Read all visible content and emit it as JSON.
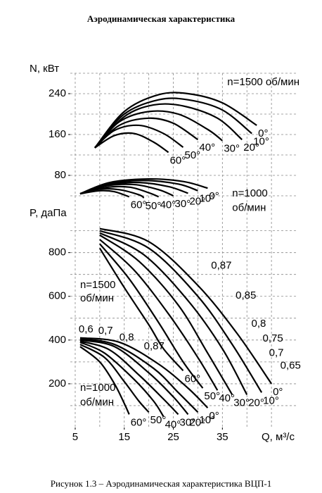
{
  "title": "Аэродинамическая характеристика",
  "caption": "Рисунок 1.3 – Аэродинамическая характеристика ВЦП-1",
  "chart_data": [
    {
      "type": "line",
      "ylabel": "N, кВт",
      "xlim": [
        4,
        50
      ],
      "ylim": [
        0,
        280
      ],
      "yticks": [
        80,
        160,
        240
      ],
      "x_grid": [
        5,
        10,
        15,
        20,
        25,
        30,
        35,
        40,
        45
      ],
      "y_grid": [
        40,
        80,
        120,
        160,
        200,
        240,
        280
      ],
      "color": "#000000",
      "annotations": [
        {
          "text": "n=1500 об/мин",
          "x": 36,
          "y": 262
        },
        {
          "text": "n=1000",
          "x": 37,
          "y": 44
        },
        {
          "text": "об/мин",
          "x": 37,
          "y": 16
        }
      ],
      "series": [
        {
          "name": "0°",
          "x": [
            9,
            15,
            22,
            28,
            35,
            42
          ],
          "values": [
            134,
            205,
            238,
            240,
            222,
            178
          ]
        },
        {
          "name": "10°",
          "x": [
            9,
            15,
            22,
            28,
            35,
            41
          ],
          "values": [
            134,
            200,
            228,
            228,
            208,
            162
          ]
        },
        {
          "name": "20°",
          "x": [
            9,
            15,
            21,
            27,
            34,
            39
          ],
          "values": [
            134,
            195,
            218,
            216,
            192,
            150
          ]
        },
        {
          "name": "30°",
          "x": [
            9,
            14,
            20,
            26,
            32,
            35
          ],
          "values": [
            134,
            185,
            205,
            200,
            170,
            148
          ]
        },
        {
          "name": "40°",
          "x": [
            9,
            14,
            20,
            25,
            30
          ],
          "values": [
            134,
            178,
            192,
            182,
            150
          ]
        },
        {
          "name": "50°",
          "x": [
            9,
            13,
            18,
            23,
            27
          ],
          "values": [
            134,
            168,
            178,
            162,
            135
          ]
        },
        {
          "name": "60°",
          "x": [
            9,
            13,
            17,
            21,
            24
          ],
          "values": [
            134,
            158,
            162,
            145,
            125
          ]
        },
        {
          "name": "0°",
          "x": [
            6,
            12,
            20,
            27,
            32
          ],
          "values": [
            44,
            66,
            73,
            68,
            55
          ]
        },
        {
          "name": "10°",
          "x": [
            6,
            12,
            19,
            26,
            30
          ],
          "values": [
            44,
            64,
            70,
            63,
            50
          ]
        },
        {
          "name": "20°",
          "x": [
            6,
            12,
            18,
            24,
            28
          ],
          "values": [
            44,
            62,
            66,
            58,
            45
          ]
        },
        {
          "name": "30°",
          "x": [
            6,
            11,
            17,
            22,
            25
          ],
          "values": [
            44,
            59,
            62,
            52,
            40
          ]
        },
        {
          "name": "40°",
          "x": [
            6,
            11,
            16,
            20,
            22
          ],
          "values": [
            44,
            56,
            57,
            46,
            38
          ]
        },
        {
          "name": "50°",
          "x": [
            6,
            10,
            14,
            18,
            19
          ],
          "values": [
            44,
            53,
            52,
            42,
            36
          ]
        },
        {
          "name": "60°",
          "x": [
            6,
            10,
            13,
            16
          ],
          "values": [
            44,
            50,
            48,
            38
          ]
        }
      ]
    },
    {
      "type": "line",
      "ylabel": "P, даПа",
      "xlabel": "Q, м³/с",
      "xlim": [
        4,
        50
      ],
      "ylim": [
        0,
        960
      ],
      "xticks": [
        5,
        15,
        25,
        35
      ],
      "yticks": [
        200,
        400,
        600,
        800
      ],
      "x_grid": [
        5,
        10,
        15,
        20,
        25,
        30,
        35,
        40,
        45
      ],
      "y_grid": [
        100,
        200,
        300,
        400,
        500,
        600,
        700,
        800,
        900
      ],
      "color": "#000000",
      "annotations": [
        {
          "text": "n=1500",
          "x": 6,
          "y": 650
        },
        {
          "text": "об/мин",
          "x": 6,
          "y": 590
        },
        {
          "text": "n=1000",
          "x": 6,
          "y": 180
        },
        {
          "text": "об/мин",
          "x": 6,
          "y": 115
        },
        {
          "text": "0,87",
          "x": 32.7,
          "y": 739
        },
        {
          "text": "0,85",
          "x": 37.7,
          "y": 603
        },
        {
          "text": "0,8",
          "x": 40.9,
          "y": 474
        },
        {
          "text": "0,75",
          "x": 43.2,
          "y": 406
        },
        {
          "text": "0,7",
          "x": 44.5,
          "y": 339
        },
        {
          "text": "0,65",
          "x": 46.8,
          "y": 281
        },
        {
          "text": "0,6",
          "x": 5.7,
          "y": 448
        },
        {
          "text": "0,7",
          "x": 9.7,
          "y": 442
        },
        {
          "text": "0,8",
          "x": 14,
          "y": 410
        },
        {
          "text": "0,87",
          "x": 19,
          "y": 371
        }
      ],
      "series": [
        {
          "name": "0°",
          "x": [
            10,
            20,
            30,
            38,
            45
          ],
          "values": [
            910,
            850,
            650,
            430,
            200
          ]
        },
        {
          "name": "10°",
          "x": [
            10,
            20,
            30,
            37,
            43
          ],
          "values": [
            900,
            820,
            600,
            380,
            160
          ]
        },
        {
          "name": "20°",
          "x": [
            10,
            19,
            28,
            35,
            40
          ],
          "values": [
            890,
            790,
            580,
            360,
            150
          ]
        },
        {
          "name": "30°",
          "x": [
            10,
            18,
            26,
            32,
            37
          ],
          "values": [
            880,
            760,
            560,
            340,
            150
          ]
        },
        {
          "name": "40°",
          "x": [
            10,
            17,
            24,
            30,
            34
          ],
          "values": [
            860,
            720,
            520,
            320,
            170
          ]
        },
        {
          "name": "50°",
          "x": [
            10,
            16,
            22,
            27,
            31
          ],
          "values": [
            840,
            680,
            480,
            300,
            180
          ]
        },
        {
          "name": "60°",
          "x": [
            10,
            15,
            20,
            23,
            27
          ],
          "values": [
            820,
            640,
            470,
            360,
            260
          ]
        },
        {
          "name": "0°",
          "x": [
            6,
            14,
            22,
            28,
            32
          ],
          "values": [
            410,
            390,
            290,
            180,
            90
          ]
        },
        {
          "name": "10°",
          "x": [
            6,
            13,
            21,
            26,
            30
          ],
          "values": [
            405,
            380,
            270,
            160,
            70
          ]
        },
        {
          "name": "20°",
          "x": [
            6,
            13,
            20,
            25,
            28
          ],
          "values": [
            400,
            370,
            250,
            140,
            60
          ]
        },
        {
          "name": "30°",
          "x": [
            6,
            12,
            18,
            23,
            26
          ],
          "values": [
            395,
            355,
            240,
            130,
            60
          ]
        },
        {
          "name": "40°",
          "x": [
            6,
            11,
            17,
            21,
            23
          ],
          "values": [
            390,
            340,
            220,
            120,
            50
          ]
        },
        {
          "name": "50°",
          "x": [
            6,
            11,
            15,
            18,
            20
          ],
          "values": [
            380,
            320,
            210,
            120,
            70
          ]
        },
        {
          "name": "60°",
          "x": [
            6,
            10,
            13,
            15,
            16
          ],
          "values": [
            370,
            300,
            200,
            110,
            60
          ]
        }
      ]
    }
  ]
}
